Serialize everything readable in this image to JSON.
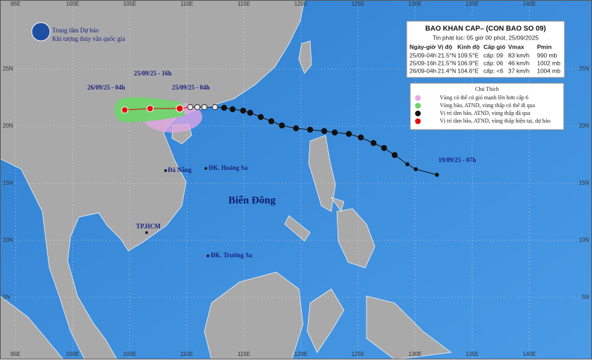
{
  "agency": {
    "line1": "Trung tâm Dự báo",
    "line2": "Khí tượng thủy văn quốc gia"
  },
  "bulletin": {
    "title": "BAO KHAN CAP– (CON BAO SO 09)",
    "issued": "Tin phát lúc: 05 giờ 00 phút, 25/09/2025",
    "table": {
      "headers": [
        "Ngày-giờ",
        "Vị độ",
        "Kinh độ",
        "Cấp gió",
        "Vmax",
        "Pmin"
      ],
      "rows": [
        [
          "25/09-04h",
          "21.5°N",
          "109.5°E",
          "cấp: 09",
          "83 km/h",
          "990 mb"
        ],
        [
          "25/09-16h",
          "21.5°N",
          "106.9°E",
          "cấp: 06",
          "46 km/h",
          "1002 mb"
        ],
        [
          "26/09-04h",
          "21.4°N",
          "104.6°E",
          "cấp: <6",
          "37 km/h",
          "1004 mb"
        ]
      ]
    }
  },
  "legend": {
    "title": "Chú Thích",
    "items": [
      "Vùng có thể có gió mạnh lên hơn cấp 6",
      "Vùng bão, ATND, vùng thấp có thể đi qua",
      "Vị trí tâm bão, ATND, vùng thấp đã qua",
      "Vị trí tâm bão, ATND, vùng thấp hiện tại, dự báo"
    ]
  },
  "axes": {
    "lon_labels": [
      "95E",
      "100E",
      "105E",
      "110E",
      "115E",
      "120E",
      "125E",
      "130E",
      "135E",
      "140E"
    ],
    "lat_labels": [
      "25N",
      "20N",
      "15N",
      "10N",
      "5N"
    ]
  },
  "track_labels": [
    "25/09/25 - 16h",
    "26/09/25 - 04h",
    "25/09/25 - 04h",
    "19/09/25 - 07h"
  ],
  "places": {
    "sea": "Biển Đông",
    "danang": "Đà Nẵng",
    "hoangsa": "ĐK. Hoàng Sa",
    "hcm": "TP.HCM",
    "truongsa": "ĐK. Trường Sa"
  }
}
